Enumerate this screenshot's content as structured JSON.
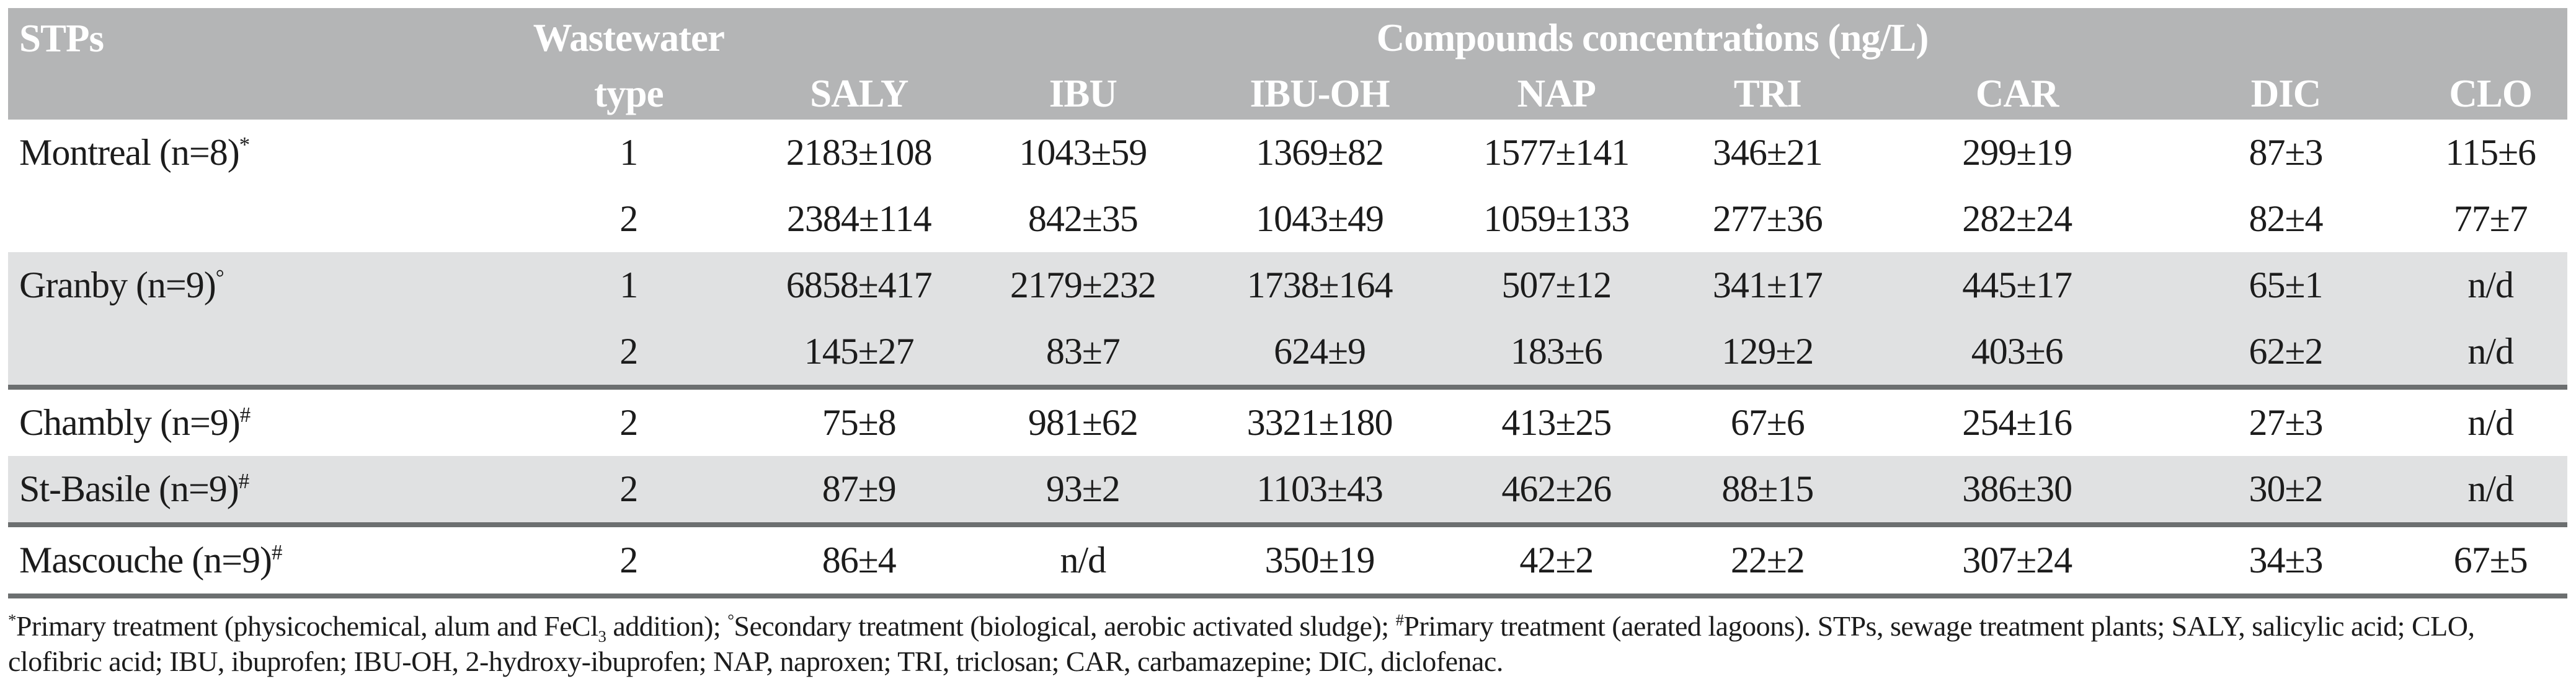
{
  "table": {
    "header": {
      "col_stps": "STPs",
      "col_wastewater_line1": "Wastewater",
      "col_wastewater_line2": "type",
      "group_title": "Compounds concentrations (ng/L)",
      "compounds": [
        "SALY",
        "IBU",
        "IBU-OH",
        "NAP",
        "TRI",
        "CAR",
        "DIC",
        "CLO"
      ]
    },
    "rows": [
      {
        "stp": "Montreal (n=8)",
        "marker": "*",
        "shaded": false,
        "rule_after": false,
        "entries": [
          {
            "type": "1",
            "values": [
              "2183±108",
              "1043±59",
              "1369±82",
              "1577±141",
              "346±21",
              "299±19",
              "87±3",
              "115±6"
            ]
          },
          {
            "type": "2",
            "values": [
              "2384±114",
              "842±35",
              "1043±49",
              "1059±133",
              "277±36",
              "282±24",
              "82±4",
              "77±7"
            ]
          }
        ]
      },
      {
        "stp": "Granby (n=9)",
        "marker": "°",
        "shaded": true,
        "rule_after": true,
        "entries": [
          {
            "type": "1",
            "values": [
              "6858±417",
              "2179±232",
              "1738±164",
              "507±12",
              "341±17",
              "445±17",
              "65±1",
              "n/d"
            ]
          },
          {
            "type": "2",
            "values": [
              "145±27",
              "83±7",
              "624±9",
              "183±6",
              "129±2",
              "403±6",
              "62±2",
              "n/d"
            ]
          }
        ]
      },
      {
        "stp": "Chambly (n=9)",
        "marker": "#",
        "shaded": false,
        "rule_after": false,
        "entries": [
          {
            "type": "2",
            "values": [
              "75±8",
              "981±62",
              "3321±180",
              "413±25",
              "67±6",
              "254±16",
              "27±3",
              "n/d"
            ]
          }
        ]
      },
      {
        "stp": "St-Basile (n=9)",
        "marker": "#",
        "shaded": true,
        "rule_after": true,
        "entries": [
          {
            "type": "2",
            "values": [
              "87±9",
              "93±2",
              "1103±43",
              "462±26",
              "88±15",
              "386±30",
              "30±2",
              "n/d"
            ]
          }
        ]
      },
      {
        "stp": "Mascouche (n=9)",
        "marker": "#",
        "shaded": false,
        "rule_after": true,
        "entries": [
          {
            "type": "2",
            "values": [
              "86±4",
              "n/d",
              "350±19",
              "42±2",
              "22±2",
              "307±24",
              "34±3",
              "67±5"
            ]
          }
        ]
      }
    ],
    "footnote_segments": [
      {
        "t": "*",
        "s": "sup"
      },
      {
        "t": "Primary treatment (physicochemical, alum and FeCl",
        "s": "n"
      },
      {
        "t": "3",
        "s": "sub"
      },
      {
        "t": " addition); ",
        "s": "n"
      },
      {
        "t": "°",
        "s": "sup"
      },
      {
        "t": "Secondary treatment (biological, aerobic activated sludge); ",
        "s": "n"
      },
      {
        "t": "#",
        "s": "sup"
      },
      {
        "t": "Primary treatment (aerated lagoons). STPs, sewage treatment plants; SALY, salicylic acid; CLO, clofibric acid; IBU, ibuprofen; IBU-OH, 2-hydroxy-ibuprofen; NAP, naproxen; TRI, triclosan; CAR, carbamazepine; DIC, diclofenac.",
        "s": "n"
      }
    ]
  },
  "colors": {
    "header_bg": "#b4b5b6",
    "shaded_row_bg": "#e0e1e2",
    "rule": "#6c6f70",
    "header_text": "#ffffff",
    "body_text": "#1c1c1c"
  }
}
